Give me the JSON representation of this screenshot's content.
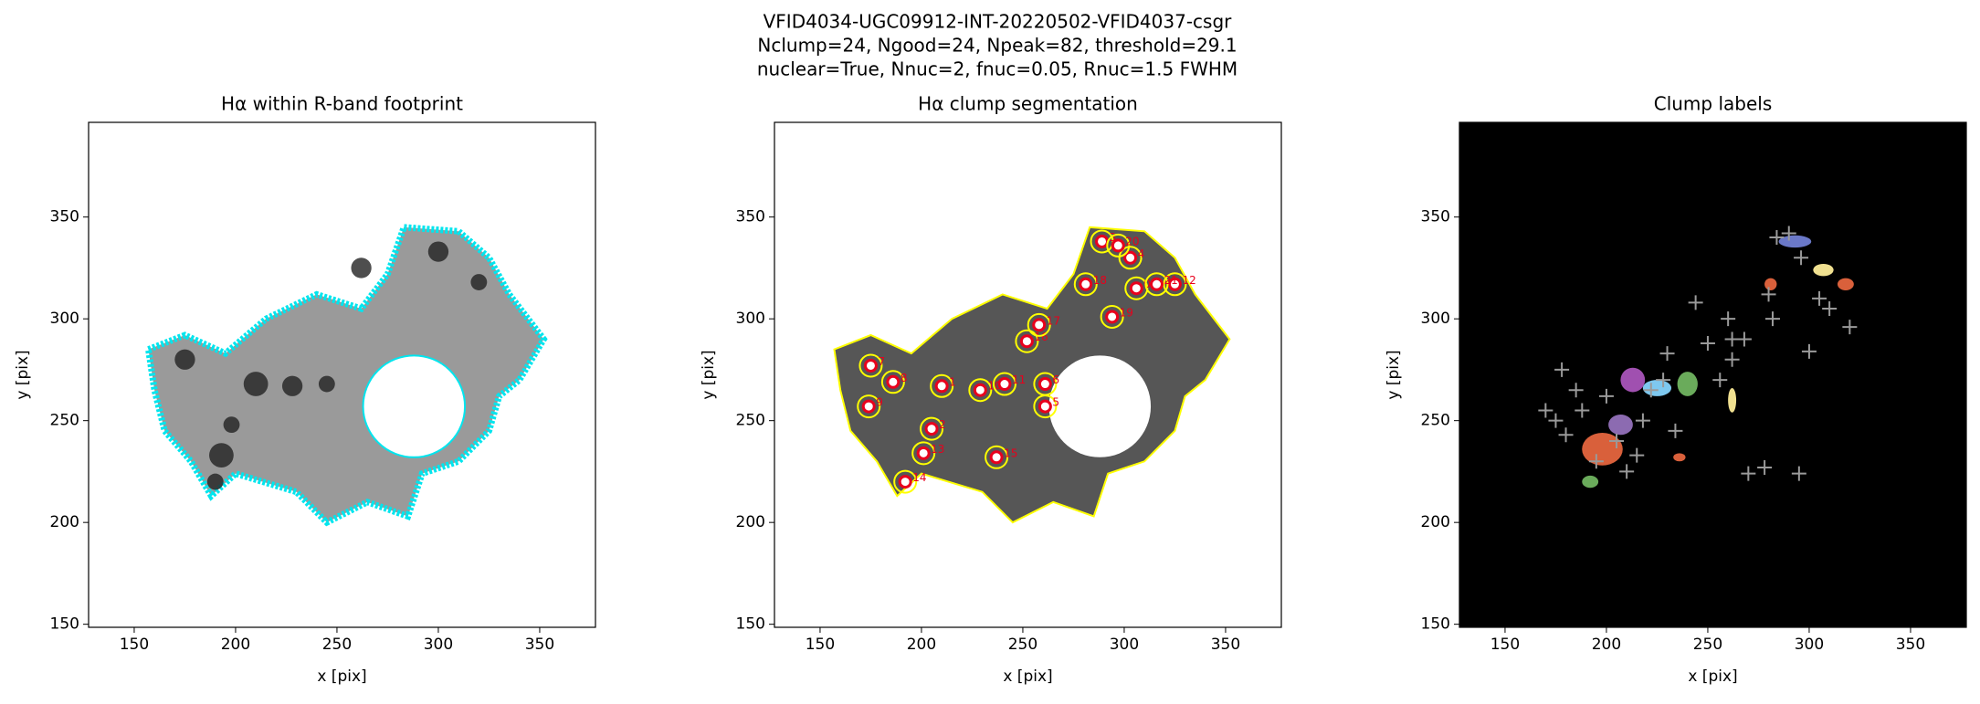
{
  "suptitle": [
    "VFID4034-UGC09912-INT-20220502-VFID4037-csgr",
    "Nclump=24, Ngood=24, Npeak=82, threshold=29.1",
    "nuclear=True, Nnuc=2, fnuc=0.05, Rnuc=1.5 FWHM"
  ],
  "chart_data": [
    {
      "type": "image",
      "title": "Hα within R-band footprint",
      "xlabel": "x [pix]",
      "ylabel": "y [pix]",
      "xlim": [
        127.5,
        377.5
      ],
      "ylim": [
        148.5,
        396.5
      ],
      "xticks": [
        150,
        200,
        250,
        300,
        350
      ],
      "yticks": [
        150,
        200,
        250,
        300,
        350
      ],
      "background": "#ffffff",
      "color": "#9a9a9a",
      "outline": "#00e5ee"
    },
    {
      "type": "image",
      "title": "Hα clump segmentation",
      "xlabel": "x [pix]",
      "ylabel": "y [pix]",
      "xlim": [
        127.5,
        377.5
      ],
      "ylim": [
        148.5,
        396.5
      ],
      "xticks": [
        150,
        200,
        250,
        300,
        350
      ],
      "yticks": [
        150,
        200,
        250,
        300,
        350
      ],
      "background": "#ffffff",
      "color": "#565656",
      "outline": "#ffff00",
      "clumps": {
        "x": [
          306,
          210,
          205,
          289,
          303,
          261,
          261,
          175,
          186,
          174,
          229,
          241,
          325,
          201,
          192,
          237,
          252,
          258,
          281,
          294,
          297,
          316
        ],
        "y": [
          315,
          267,
          246,
          338,
          330,
          257,
          268,
          277,
          269,
          257,
          265,
          268,
          317,
          234,
          220,
          232,
          289,
          297,
          317,
          301,
          336,
          317
        ],
        "labels": [
          "0",
          "1",
          "2",
          "3",
          "4",
          "5",
          "6",
          "7",
          "8",
          "9",
          "10",
          "11",
          "12",
          "13",
          "14",
          "15",
          "16",
          "17",
          "18",
          "19",
          "20",
          "21"
        ],
        "color": "#e8001c"
      }
    },
    {
      "type": "image",
      "title": "Clump labels",
      "xlabel": "x [pix]",
      "ylabel": "y [pix]",
      "xlim": [
        127.5,
        377.5
      ],
      "ylim": [
        148.5,
        396.5
      ],
      "xticks": [
        150,
        200,
        250,
        300,
        350
      ],
      "yticks": [
        150,
        200,
        250,
        300,
        350
      ],
      "background": "#000000",
      "peaks": {
        "x": [
          178,
          185,
          170,
          175,
          188,
          205,
          210,
          218,
          222,
          228,
          234,
          244,
          250,
          256,
          260,
          262,
          268,
          270,
          278,
          282,
          284,
          290,
          296,
          300,
          305,
          310,
          320,
          262,
          280,
          295,
          230,
          215,
          180,
          195,
          200
        ],
        "y": [
          275,
          265,
          255,
          250,
          255,
          240,
          225,
          250,
          265,
          270,
          245,
          308,
          288,
          270,
          300,
          290,
          290,
          224,
          227,
          300,
          340,
          342,
          330,
          284,
          310,
          305,
          296,
          280,
          312,
          224,
          283,
          233,
          243,
          230,
          262
        ],
        "color": "#9a9a9a"
      }
    }
  ]
}
